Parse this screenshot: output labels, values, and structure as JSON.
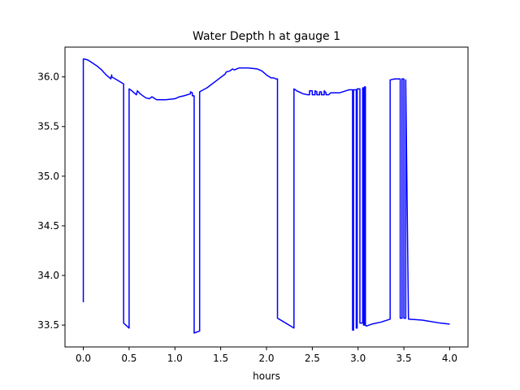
{
  "chart_data": {
    "type": "line",
    "title": "Water Depth h at gauge 1",
    "xlabel": "hours",
    "ylabel": "",
    "xlim": [
      -0.2,
      4.2
    ],
    "ylim": [
      33.28,
      36.3
    ],
    "grid": false,
    "legend": "none",
    "xticks": [
      0.0,
      0.5,
      1.0,
      1.5,
      2.0,
      2.5,
      3.0,
      3.5,
      4.0
    ],
    "xtick_labels": [
      "0.0",
      "0.5",
      "1.0",
      "1.5",
      "2.0",
      "2.5",
      "3.0",
      "3.5",
      "4.0"
    ],
    "yticks": [
      33.5,
      34.0,
      34.5,
      35.0,
      35.5,
      36.0
    ],
    "ytick_labels": [
      "33.5",
      "34.0",
      "34.5",
      "35.0",
      "35.5",
      "36.0"
    ],
    "series": [
      {
        "name": "",
        "color": "#0000ff",
        "x": [
          0.0,
          0.0,
          0.01,
          0.05,
          0.1,
          0.15,
          0.2,
          0.25,
          0.3,
          0.31,
          0.31,
          0.33,
          0.44,
          0.44,
          0.5,
          0.5,
          0.53,
          0.58,
          0.59,
          0.62,
          0.68,
          0.72,
          0.75,
          0.8,
          0.9,
          1.0,
          1.05,
          1.1,
          1.17,
          1.17,
          1.19,
          1.19,
          1.21,
          1.21,
          1.27,
          1.27,
          1.35,
          1.45,
          1.55,
          1.56,
          1.6,
          1.63,
          1.65,
          1.7,
          1.8,
          1.9,
          1.95,
          2.0,
          2.05,
          2.08,
          2.1,
          2.12,
          2.12,
          2.3,
          2.3,
          2.33,
          2.4,
          2.45,
          2.47,
          2.47,
          2.5,
          2.5,
          2.53,
          2.53,
          2.55,
          2.55,
          2.58,
          2.58,
          2.6,
          2.6,
          2.63,
          2.63,
          2.65,
          2.65,
          2.68,
          2.7,
          2.8,
          2.9,
          2.94,
          2.94,
          2.95,
          2.95,
          2.98,
          2.98,
          2.99,
          2.99,
          3.02,
          3.02,
          3.05,
          3.05,
          3.06,
          3.06,
          3.07,
          3.07,
          3.08,
          3.08,
          3.09,
          3.15,
          3.25,
          3.35,
          3.35,
          3.4,
          3.45,
          3.46,
          3.46,
          3.48,
          3.48,
          3.5,
          3.5,
          3.52,
          3.52,
          3.55,
          3.7,
          3.9,
          4.0
        ],
        "y": [
          33.73,
          36.18,
          36.18,
          36.17,
          36.14,
          36.11,
          36.07,
          36.02,
          35.98,
          36.02,
          36.0,
          35.99,
          35.93,
          33.52,
          33.47,
          35.88,
          35.86,
          35.82,
          35.86,
          35.83,
          35.79,
          35.78,
          35.8,
          35.77,
          35.77,
          35.78,
          35.8,
          35.81,
          35.83,
          35.85,
          35.84,
          35.81,
          35.81,
          33.42,
          33.44,
          35.85,
          35.89,
          35.96,
          36.03,
          36.05,
          36.06,
          36.08,
          36.07,
          36.09,
          36.09,
          36.08,
          36.06,
          36.02,
          35.99,
          35.99,
          35.98,
          35.98,
          33.57,
          33.47,
          35.88,
          35.86,
          35.83,
          35.82,
          35.82,
          35.86,
          35.86,
          35.82,
          35.82,
          35.86,
          35.85,
          35.82,
          35.82,
          35.85,
          35.85,
          35.82,
          35.82,
          35.86,
          35.84,
          35.82,
          35.82,
          35.84,
          35.84,
          35.87,
          35.87,
          33.45,
          33.45,
          35.87,
          35.87,
          33.47,
          33.47,
          35.88,
          35.88,
          33.52,
          33.52,
          35.89,
          35.89,
          33.5,
          33.5,
          35.9,
          35.9,
          33.5,
          33.49,
          33.51,
          33.53,
          33.56,
          35.97,
          35.98,
          35.98,
          35.98,
          33.57,
          33.57,
          35.98,
          35.98,
          33.57,
          33.57,
          35.97,
          33.56,
          33.55,
          33.52,
          33.51
        ]
      }
    ]
  }
}
